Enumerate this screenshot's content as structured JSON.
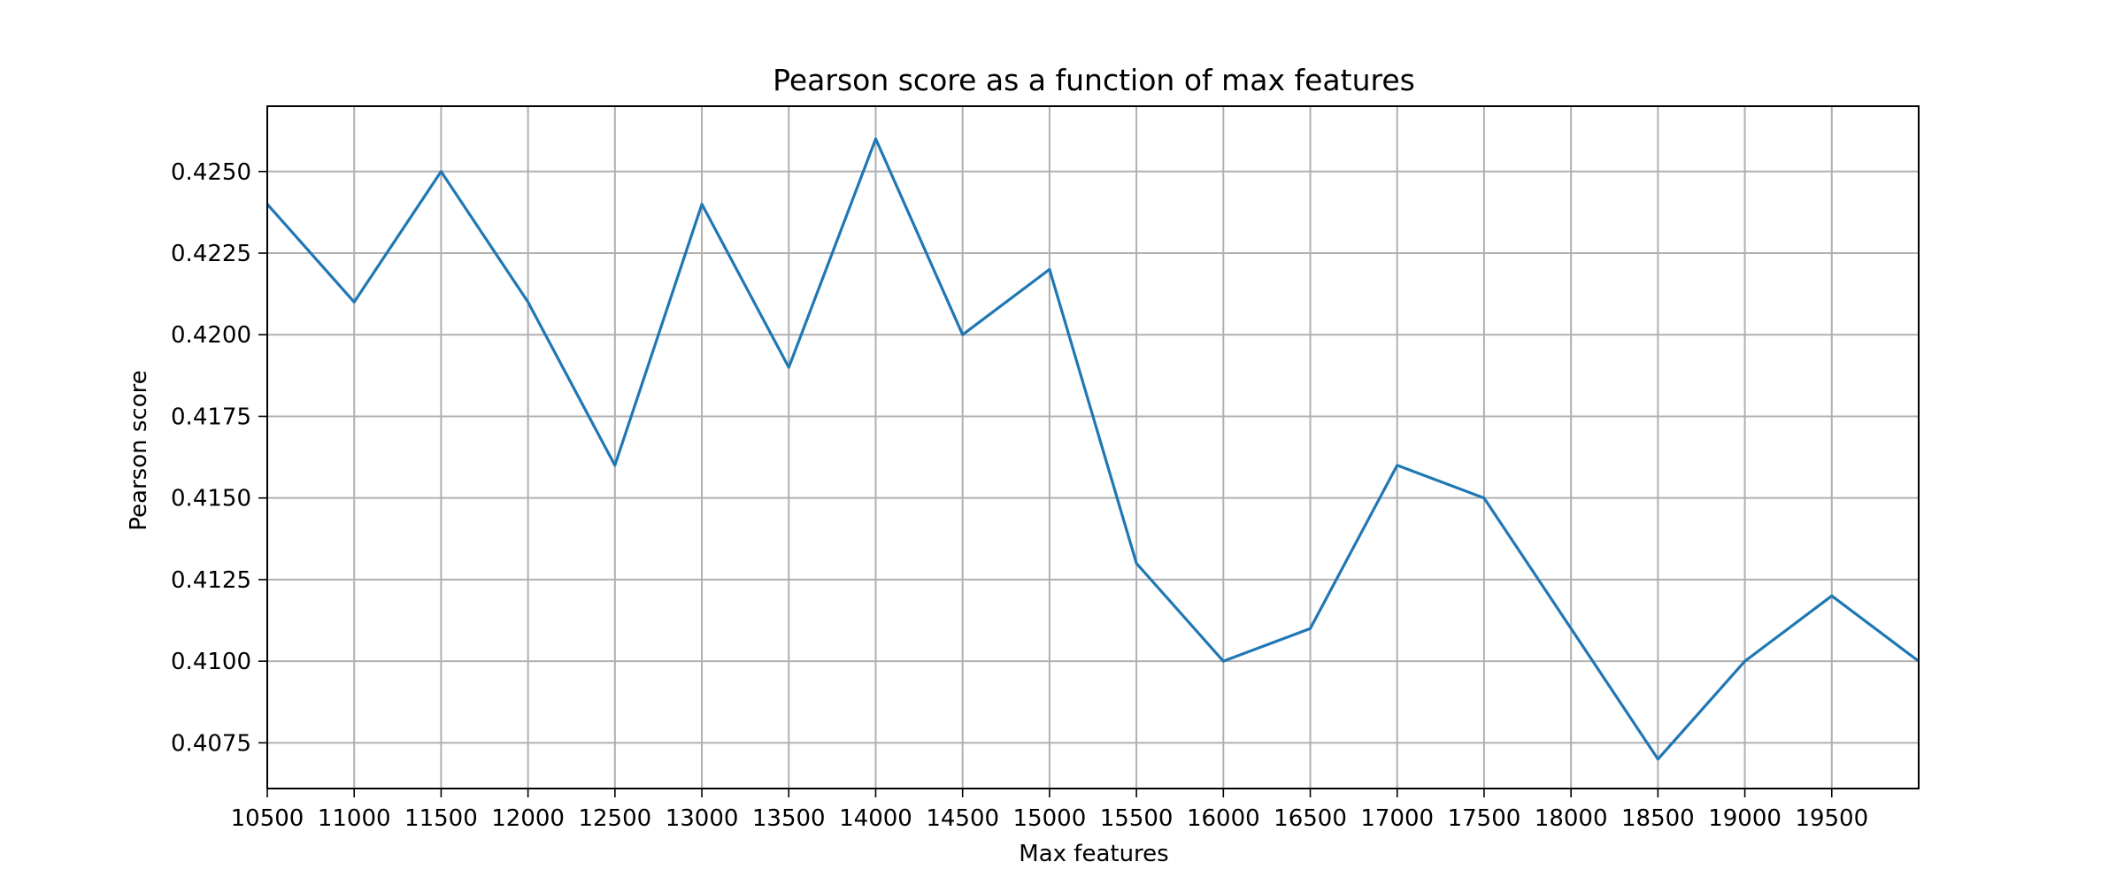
{
  "chart_data": {
    "type": "line",
    "title": "Pearson score as a function of max features",
    "xlabel": "Max features",
    "ylabel": "Pearson score",
    "xlim": [
      10500,
      20000
    ],
    "ylim": [
      0.4061,
      0.427
    ],
    "grid": true,
    "xticks": [
      10500,
      11000,
      11500,
      12000,
      12500,
      13000,
      13500,
      14000,
      14500,
      15000,
      15500,
      16000,
      16500,
      17000,
      17500,
      18000,
      18500,
      19000,
      19500
    ],
    "xtick_labels": [
      "10500",
      "11000",
      "11500",
      "12000",
      "12500",
      "13000",
      "13500",
      "14000",
      "14500",
      "15000",
      "15500",
      "16000",
      "16500",
      "17000",
      "17500",
      "18000",
      "18500",
      "19000",
      "19500"
    ],
    "yticks": [
      0.4075,
      0.41,
      0.4125,
      0.415,
      0.4175,
      0.42,
      0.4225,
      0.425
    ],
    "ytick_labels": [
      "0.4075",
      "0.4100",
      "0.4125",
      "0.4150",
      "0.4175",
      "0.4200",
      "0.4225",
      "0.4250"
    ],
    "series": [
      {
        "color": "#1f77b4",
        "x": [
          10500,
          11000,
          11500,
          12000,
          12500,
          13000,
          13500,
          14000,
          14500,
          15000,
          15500,
          16000,
          16500,
          17000,
          17500,
          18000,
          18500,
          19000,
          19500,
          20000
        ],
        "y": [
          0.424,
          0.421,
          0.425,
          0.421,
          0.416,
          0.424,
          0.419,
          0.426,
          0.42,
          0.422,
          0.413,
          0.41,
          0.411,
          0.416,
          0.415,
          0.411,
          0.407,
          0.41,
          0.412,
          0.41
        ]
      }
    ]
  }
}
